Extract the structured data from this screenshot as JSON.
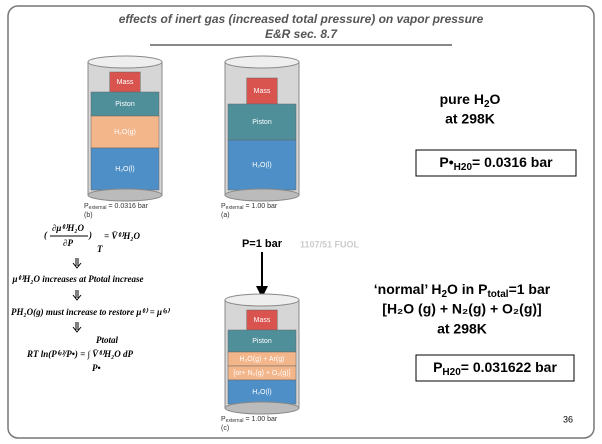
{
  "slide": {
    "title_line1": "effects of inert gas (increased total pressure) on vapor pressure",
    "title_line2": "E&R sec. 8.7",
    "cylinders": [
      {
        "layers": [
          "Mass",
          "Piston",
          "H₂O(g)",
          "H₂O(l)"
        ],
        "pressure": {
          "p": "P",
          "sub": "external",
          "rest": "= 0.0316 bar"
        },
        "tag": "(b)"
      },
      {
        "layers": [
          "Mass",
          "Piston",
          "H₂O(l)"
        ],
        "pressure": {
          "p": "P",
          "sub": "external",
          "rest": "= 1.00 bar"
        },
        "tag": "(a)"
      },
      {
        "layers": [
          "Mass",
          "Piston",
          "H₂O(g) + Ar(g)",
          "[or+ N₂(g) + O₂(g)]",
          "H₂O(l)"
        ],
        "pressure": {
          "p": "P",
          "sub": "external",
          "rest": "= 1.00 bar"
        },
        "tag": "(c)"
      }
    ],
    "watermark": "1107/51 FUOL",
    "pure": {
      "text": "pure H",
      "sub": "2",
      "rest": "O",
      "line2": "at 298K"
    },
    "box1": {
      "p": "P•",
      "sub": "H20",
      "rest": "= 0.0316 bar"
    },
    "arrow_label": "P=1 bar",
    "normal": {
      "a": "‘normal’ H",
      "a_sub": "2",
      "b": "O in P",
      "b_sub": "total",
      "c": "=1 bar",
      "line2": "[H₂O (g) + N₂(g) + O₂(g)]",
      "line3": "at 298K"
    },
    "box2": {
      "p": "P",
      "sub": "H20",
      "rest": "= 0.031622 bar"
    },
    "equations": {
      "eq1_num": "∂μ⁽ˡ⁾H₂O",
      "eq1_den": "∂P",
      "eq1_sub": "T",
      "eq1_rhs": "= V̄⁽ˡ⁾H₂O",
      "eq2": "μ⁽ˡ⁾H₂O increases at Ptotal increase",
      "eq3": "PH₂O(g) must increase to restore μ⁽ˡ⁾ = μ⁽ᵍ⁾",
      "eq4": "RT ln(P⁽ᵍ⁾/P•) = ∫ V̄⁽ˡ⁾H₂O dP",
      "eq4_upper": "Ptotal",
      "eq4_lower": "P•"
    },
    "page_number": "36"
  }
}
